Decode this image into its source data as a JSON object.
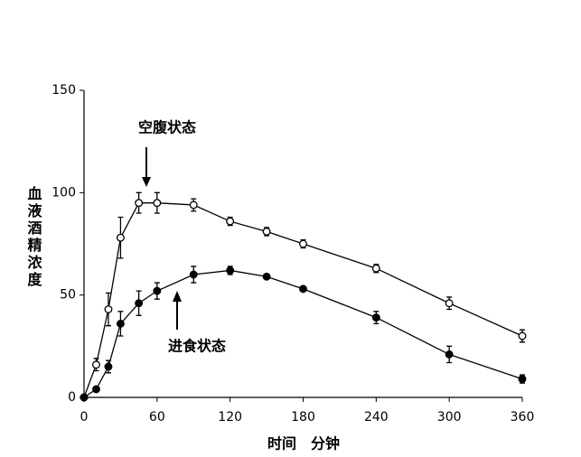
{
  "chart_data": {
    "type": "line",
    "xlabel": "时间　分钟",
    "ylabel": "血液酒精浓度",
    "x": [
      0,
      10,
      20,
      30,
      45,
      60,
      90,
      120,
      150,
      180,
      240,
      300,
      360
    ],
    "series": [
      {
        "name": "空腹状态",
        "color": "#000000",
        "marker": "open",
        "values": [
          0,
          16,
          43,
          78,
          95,
          95,
          94,
          86,
          81,
          75,
          63,
          46,
          30
        ],
        "errors": [
          0,
          3,
          8,
          10,
          5,
          5,
          3,
          2,
          2,
          2,
          2,
          3,
          3
        ]
      },
      {
        "name": "进食状态",
        "color": "#000000",
        "marker": "filled",
        "values": [
          0,
          4,
          15,
          36,
          46,
          52,
          60,
          62,
          59,
          53,
          39,
          21,
          9
        ],
        "errors": [
          0,
          1,
          3,
          6,
          6,
          4,
          4,
          2,
          1,
          1,
          3,
          4,
          2
        ]
      }
    ],
    "xlim": [
      0,
      360
    ],
    "xticks": [
      0,
      60,
      120,
      180,
      240,
      300,
      360
    ],
    "ylim": [
      0,
      150
    ],
    "yticks": [
      0,
      50,
      100,
      150
    ],
    "grid": false
  }
}
